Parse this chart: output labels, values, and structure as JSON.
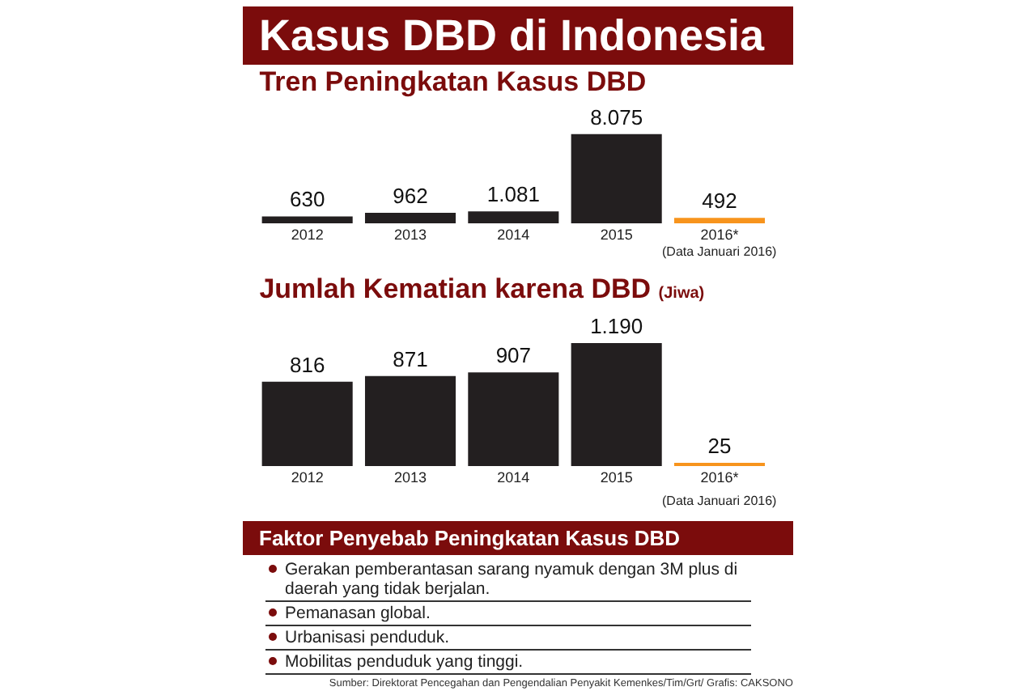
{
  "chart_data": [
    {
      "type": "bar",
      "title": "Kasus DBD di Indonesia",
      "subtitle": "Tren Peningkatan Kasus DBD",
      "categories": [
        "2012",
        "2013",
        "2014",
        "2015",
        "2016*"
      ],
      "values": [
        630,
        962,
        1081,
        8075,
        492
      ],
      "value_labels": [
        "630",
        "962",
        "1.081",
        "8.075",
        "492"
      ],
      "colors": [
        "#231f20",
        "#231f20",
        "#231f20",
        "#231f20",
        "#f7941d"
      ],
      "annotations": [
        "(Data Januari 2016)"
      ]
    },
    {
      "type": "bar",
      "title": "Jumlah Kematian karena DBD",
      "ylabel": "(Jiwa)",
      "categories": [
        "2012",
        "2013",
        "2014",
        "2015",
        "2016*"
      ],
      "values": [
        816,
        871,
        907,
        1190,
        25
      ],
      "value_labels": [
        "816",
        "871",
        "907",
        "1.190",
        "25"
      ],
      "colors": [
        "#231f20",
        "#231f20",
        "#231f20",
        "#231f20",
        "#f7941d"
      ],
      "annotations": [
        "(Data Januari 2016)"
      ]
    },
    {
      "type": "other",
      "title": "Faktor Penyebab Peningkatan Kasus DBD",
      "annotations": [
        "Gerakan pemberantasan sarang nyamuk dengan 3M plus di daerah yang tidak berjalan.",
        "Pemanasan global.",
        "Urbanisasi penduduk.",
        "Mobilitas penduduk yang tinggi.",
        "Sumber: Direktorat Pencegahan dan Pengendalian Penyakit Kemenkes/Tim/Grt/ Grafis: CAKSONO"
      ]
    }
  ]
}
